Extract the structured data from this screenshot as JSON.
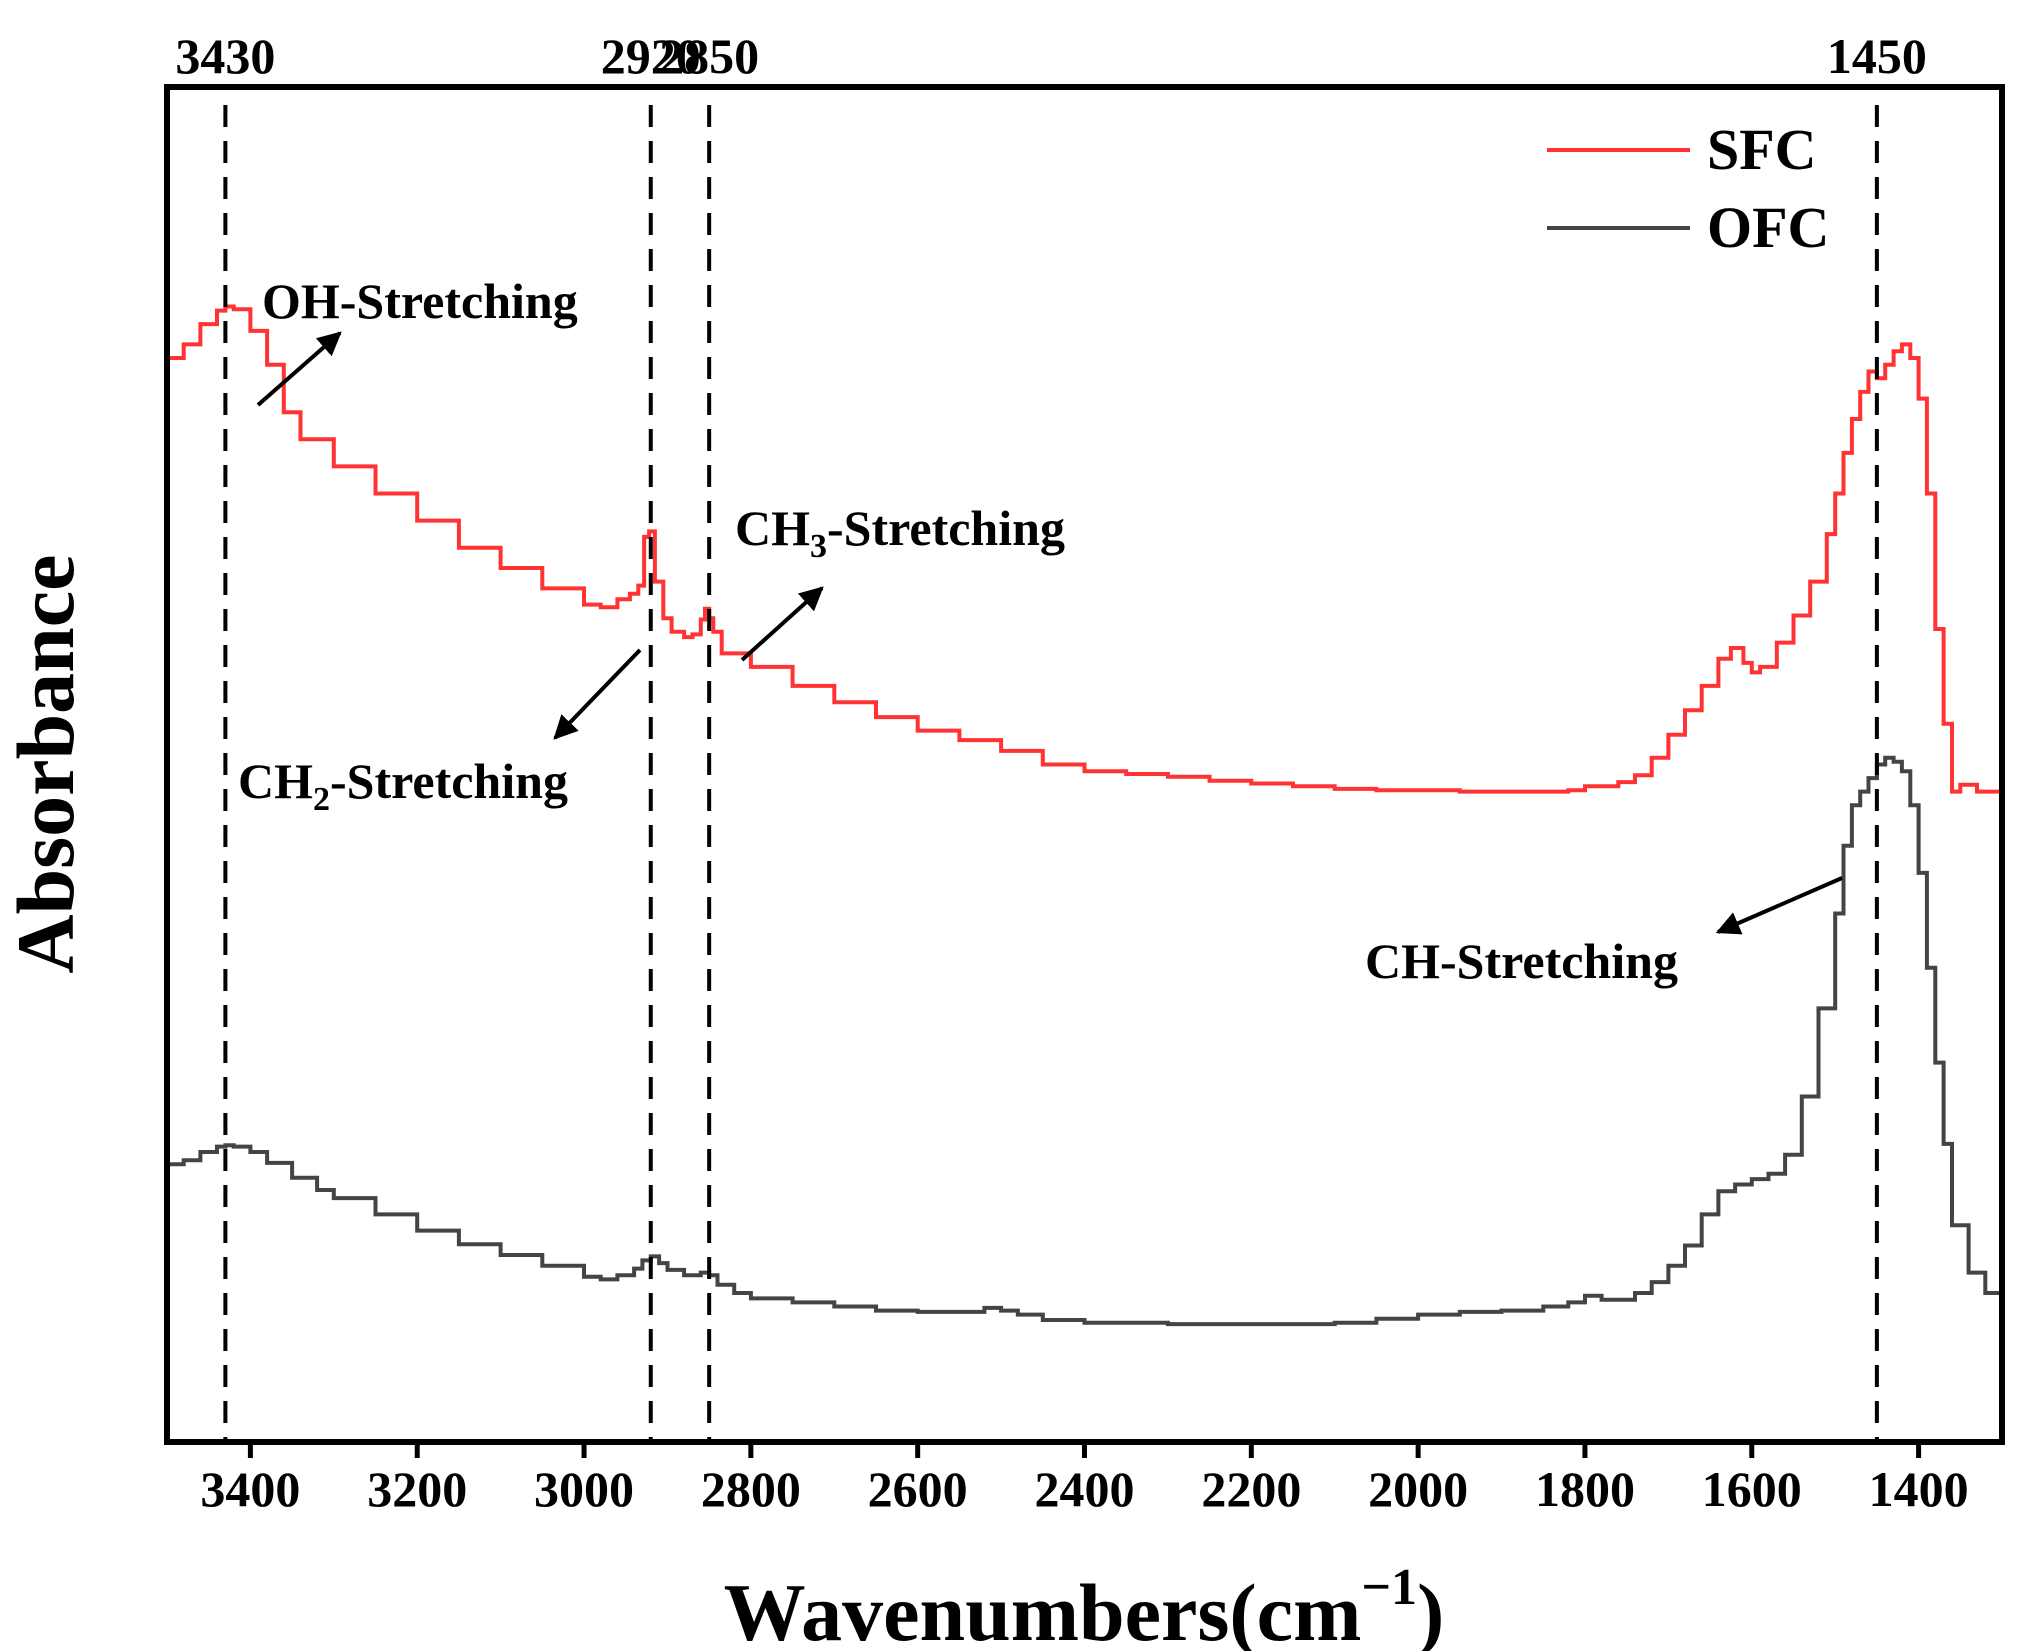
{
  "chart_data": {
    "type": "line",
    "title": "",
    "xlabel": "Wavenumbers(cm",
    "xlabel_superscript": "−1",
    "xlabel_close": ")",
    "ylabel": "Absorbance",
    "xlim": [
      3500,
      1300
    ],
    "x_reversed": true,
    "xticks": [
      3400,
      3200,
      3000,
      2800,
      2600,
      2400,
      2200,
      2000,
      1800,
      1600,
      1400
    ],
    "xtick_labels": [
      "3400",
      "3200",
      "3000",
      "2800",
      "2600",
      "2400",
      "2200",
      "2000",
      "1800",
      "1600",
      "1400"
    ],
    "ylim": [
      0,
      1
    ],
    "y_ticks_shown": false,
    "grid": false,
    "legend_position": "top-right",
    "legend_markers": [
      "SFC",
      "OFC"
    ],
    "reference_lines": {
      "x": [
        3430,
        2920,
        2850,
        1450
      ],
      "labels": [
        "3430",
        "2920",
        "2850",
        "1450"
      ],
      "style": "dashed"
    },
    "annotations": [
      {
        "text": "OH-Stretching",
        "target_x": 3420,
        "target_y": 0.79
      },
      {
        "text": "CH",
        "sub": "2",
        "rest": "-Stretching",
        "target_x": 2925,
        "target_y": 0.62
      },
      {
        "text": "CH",
        "sub": "3",
        "rest": "-Stretching",
        "target_x": 2855,
        "target_y": 0.6
      },
      {
        "text": "CH-Stretching",
        "target_x": 1470,
        "target_y": 0.43
      }
    ],
    "series": [
      {
        "name": "SFC",
        "color": "#ff3333",
        "x": [
          3500,
          3480,
          3460,
          3440,
          3430,
          3420,
          3400,
          3380,
          3360,
          3340,
          3300,
          3250,
          3200,
          3150,
          3100,
          3050,
          3000,
          2980,
          2960,
          2945,
          2935,
          2928,
          2922,
          2915,
          2905,
          2895,
          2880,
          2870,
          2860,
          2855,
          2850,
          2845,
          2835,
          2800,
          2750,
          2700,
          2650,
          2600,
          2550,
          2500,
          2450,
          2400,
          2350,
          2300,
          2250,
          2200,
          2150,
          2100,
          2050,
          2000,
          1950,
          1900,
          1850,
          1820,
          1800,
          1780,
          1760,
          1740,
          1720,
          1700,
          1680,
          1660,
          1640,
          1625,
          1610,
          1600,
          1590,
          1570,
          1550,
          1530,
          1510,
          1500,
          1490,
          1480,
          1470,
          1460,
          1450,
          1440,
          1430,
          1420,
          1410,
          1400,
          1390,
          1380,
          1370,
          1360,
          1350,
          1330,
          1310,
          1300
        ],
        "values": [
          0.8,
          0.81,
          0.825,
          0.835,
          0.838,
          0.836,
          0.82,
          0.795,
          0.76,
          0.74,
          0.72,
          0.7,
          0.68,
          0.66,
          0.645,
          0.63,
          0.618,
          0.616,
          0.622,
          0.626,
          0.632,
          0.668,
          0.672,
          0.635,
          0.608,
          0.598,
          0.594,
          0.596,
          0.607,
          0.615,
          0.608,
          0.598,
          0.582,
          0.572,
          0.558,
          0.546,
          0.535,
          0.525,
          0.518,
          0.51,
          0.5,
          0.495,
          0.493,
          0.491,
          0.488,
          0.486,
          0.484,
          0.482,
          0.481,
          0.481,
          0.48,
          0.48,
          0.48,
          0.481,
          0.484,
          0.484,
          0.487,
          0.492,
          0.505,
          0.522,
          0.54,
          0.558,
          0.578,
          0.586,
          0.575,
          0.568,
          0.572,
          0.59,
          0.61,
          0.635,
          0.67,
          0.7,
          0.73,
          0.755,
          0.775,
          0.79,
          0.785,
          0.795,
          0.805,
          0.81,
          0.8,
          0.77,
          0.7,
          0.6,
          0.53,
          0.48,
          0.485,
          0.48,
          0.48,
          0.48
        ]
      },
      {
        "name": "OFC",
        "color": "#444444",
        "x": [
          3500,
          3480,
          3460,
          3440,
          3430,
          3420,
          3400,
          3380,
          3350,
          3320,
          3300,
          3250,
          3200,
          3150,
          3100,
          3050,
          3000,
          2980,
          2960,
          2940,
          2930,
          2920,
          2910,
          2900,
          2880,
          2860,
          2850,
          2840,
          2820,
          2800,
          2750,
          2700,
          2650,
          2600,
          2550,
          2520,
          2500,
          2480,
          2450,
          2400,
          2350,
          2300,
          2250,
          2200,
          2150,
          2100,
          2050,
          2000,
          1950,
          1900,
          1850,
          1820,
          1800,
          1780,
          1760,
          1740,
          1720,
          1700,
          1680,
          1660,
          1640,
          1620,
          1600,
          1580,
          1560,
          1540,
          1520,
          1500,
          1490,
          1480,
          1470,
          1460,
          1450,
          1440,
          1430,
          1420,
          1410,
          1400,
          1390,
          1380,
          1370,
          1360,
          1340,
          1320,
          1300
        ],
        "values": [
          0.205,
          0.208,
          0.214,
          0.218,
          0.219,
          0.218,
          0.214,
          0.206,
          0.195,
          0.186,
          0.18,
          0.168,
          0.156,
          0.146,
          0.138,
          0.13,
          0.122,
          0.12,
          0.123,
          0.128,
          0.134,
          0.137,
          0.132,
          0.127,
          0.123,
          0.125,
          0.123,
          0.116,
          0.11,
          0.106,
          0.103,
          0.1,
          0.097,
          0.096,
          0.096,
          0.099,
          0.097,
          0.094,
          0.09,
          0.088,
          0.088,
          0.087,
          0.087,
          0.087,
          0.087,
          0.088,
          0.091,
          0.094,
          0.096,
          0.097,
          0.1,
          0.103,
          0.108,
          0.105,
          0.105,
          0.11,
          0.118,
          0.13,
          0.145,
          0.168,
          0.185,
          0.19,
          0.194,
          0.198,
          0.212,
          0.255,
          0.32,
          0.39,
          0.44,
          0.47,
          0.48,
          0.49,
          0.5,
          0.505,
          0.502,
          0.495,
          0.47,
          0.42,
          0.35,
          0.28,
          0.22,
          0.16,
          0.125,
          0.11,
          0.108
        ]
      }
    ]
  }
}
